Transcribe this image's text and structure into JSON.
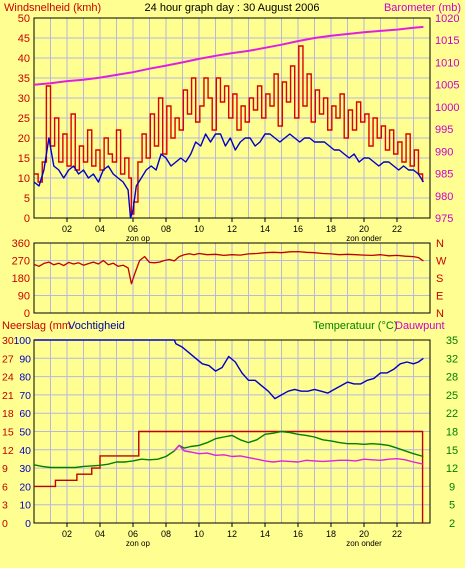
{
  "title": "24 hour graph day : 30 August 2006",
  "colors": {
    "background": "#fefe91",
    "plot_bg": "#fefe91",
    "grid": "#b7b7e0",
    "frame": "#000000",
    "wind": "#dd0000",
    "wind_avg": "#0000c8",
    "barometer": "#e020e0",
    "direction": "#c00000",
    "humidity": "#0000c8",
    "rain": "#c00000",
    "temperature": "#008000",
    "dewpoint": "#e020e0",
    "left_label": "#cc0000",
    "right_label_top": "#cc00cc",
    "right_label_mid": "#cc0000",
    "right_label_bottom": "#008000",
    "neerslag_label": "#cc0000",
    "vocht_label": "#0000aa",
    "dauw_label": "#cc00cc"
  },
  "x_ticks": [
    "02",
    "04",
    "06",
    "08",
    "10",
    "12",
    "14",
    "16",
    "18",
    "20",
    "22"
  ],
  "sun_labels": {
    "sunrise": "zon op",
    "sunset": "zon onder"
  },
  "chart_data": [
    {
      "type": "line",
      "name": "wind_barometer",
      "ylabel_left": "Windsnelheid (kmh)",
      "ylabel_right": "Barometer (mb)",
      "left_axis": {
        "min": 0,
        "max": 50,
        "ticks": [
          0,
          5,
          10,
          15,
          20,
          25,
          30,
          35,
          40,
          45,
          50
        ]
      },
      "right_axis": {
        "min": 975,
        "max": 1020,
        "ticks": [
          975,
          980,
          985,
          990,
          995,
          1000,
          1005,
          1010,
          1015,
          1020
        ]
      },
      "x_range_hours": [
        0,
        24
      ],
      "wind_avg": {
        "x": [
          0,
          0.3,
          0.6,
          0.9,
          1.2,
          1.5,
          1.8,
          2.1,
          2.4,
          2.7,
          3.0,
          3.3,
          3.6,
          3.9,
          4.2,
          4.5,
          4.8,
          5.1,
          5.4,
          5.7,
          5.85,
          6.0,
          6.2,
          6.5,
          6.8,
          7.1,
          7.4,
          7.7,
          8.0,
          8.3,
          8.6,
          8.9,
          9.2,
          9.5,
          9.8,
          10.1,
          10.4,
          10.7,
          11.0,
          11.3,
          11.6,
          11.9,
          12.2,
          12.5,
          12.8,
          13.1,
          13.4,
          13.7,
          14.0,
          14.3,
          14.6,
          14.9,
          15.2,
          15.5,
          15.8,
          16.1,
          16.4,
          16.7,
          17.0,
          17.3,
          17.6,
          17.9,
          18.2,
          18.5,
          18.8,
          19.1,
          19.4,
          19.7,
          20.0,
          20.3,
          20.6,
          20.9,
          21.2,
          21.5,
          21.8,
          22.1,
          22.4,
          22.7,
          23.0,
          23.3,
          23.6
        ],
        "values": [
          9,
          8,
          12,
          20,
          13,
          12,
          10,
          12,
          13,
          11,
          12,
          10,
          11,
          9,
          12,
          13,
          11,
          10,
          9,
          7,
          0,
          2,
          8,
          10,
          12,
          13,
          12,
          16,
          15,
          13,
          14,
          15,
          14,
          16,
          19,
          18,
          21,
          19,
          21,
          21,
          18,
          20,
          17,
          19,
          20,
          20,
          18,
          19,
          21,
          21,
          20,
          19,
          20,
          21,
          20,
          19,
          20,
          20,
          19,
          19,
          19,
          18,
          17,
          17,
          16,
          15,
          16,
          14,
          15,
          15,
          14,
          13,
          14,
          14,
          13,
          12,
          13,
          12,
          12,
          11,
          9
        ]
      },
      "wind_gust": {
        "x": [
          0,
          0.25,
          0.5,
          0.75,
          1.0,
          1.25,
          1.5,
          1.75,
          2.0,
          2.25,
          2.5,
          2.75,
          3.0,
          3.25,
          3.5,
          3.75,
          4.0,
          4.25,
          4.5,
          4.75,
          5.0,
          5.25,
          5.5,
          5.75,
          5.9,
          6.05,
          6.3,
          6.55,
          6.8,
          7.05,
          7.3,
          7.55,
          7.8,
          8.05,
          8.3,
          8.55,
          8.8,
          9.05,
          9.3,
          9.55,
          9.8,
          10.05,
          10.3,
          10.55,
          10.8,
          11.05,
          11.3,
          11.55,
          11.8,
          12.05,
          12.3,
          12.55,
          12.8,
          13.05,
          13.3,
          13.55,
          13.8,
          14.05,
          14.3,
          14.55,
          14.8,
          15.05,
          15.3,
          15.55,
          15.8,
          16.05,
          16.3,
          16.55,
          16.8,
          17.05,
          17.3,
          17.55,
          17.8,
          18.05,
          18.3,
          18.55,
          18.8,
          19.05,
          19.3,
          19.55,
          19.8,
          20.05,
          20.3,
          20.55,
          20.8,
          21.05,
          21.3,
          21.55,
          21.8,
          22.05,
          22.3,
          22.55,
          22.8,
          23.05,
          23.3,
          23.55
        ],
        "values": [
          11,
          9,
          14,
          33,
          18,
          25,
          14,
          21,
          13,
          26,
          12,
          18,
          14,
          22,
          13,
          17,
          12,
          20,
          16,
          14,
          22,
          11,
          15,
          10,
          1,
          4,
          14,
          21,
          15,
          26,
          18,
          30,
          16,
          28,
          20,
          25,
          22,
          32,
          26,
          35,
          24,
          28,
          35,
          30,
          22,
          35,
          29,
          33,
          25,
          31,
          22,
          28,
          24,
          30,
          27,
          33,
          25,
          31,
          28,
          36,
          23,
          34,
          29,
          38,
          25,
          43,
          28,
          36,
          24,
          32,
          26,
          30,
          22,
          28,
          25,
          31,
          20,
          27,
          22,
          29,
          24,
          26,
          18,
          25,
          20,
          23,
          17,
          22,
          16,
          19,
          14,
          21,
          13,
          17,
          11,
          9
        ]
      },
      "barometer": {
        "x": [
          0,
          1,
          2,
          3,
          4,
          5,
          6,
          7,
          8,
          9,
          10,
          11,
          12,
          13,
          14,
          15,
          16,
          17,
          18,
          19,
          20,
          21,
          22,
          23,
          23.6
        ],
        "values": [
          1005,
          1005.3,
          1005.8,
          1006.1,
          1006.6,
          1007.2,
          1007.8,
          1008.6,
          1009.3,
          1010,
          1010.8,
          1011.5,
          1012.1,
          1012.6,
          1013.3,
          1014,
          1014.8,
          1015.5,
          1016,
          1016.4,
          1016.8,
          1017.1,
          1017.4,
          1017.8,
          1018
        ]
      }
    },
    {
      "type": "line",
      "name": "wind_direction",
      "left_axis": {
        "min": 0,
        "max": 360,
        "ticks": [
          0,
          90,
          180,
          270,
          360
        ]
      },
      "right_labels": [
        "N",
        "W",
        "S",
        "E",
        "N"
      ],
      "x_range_hours": [
        0,
        24
      ],
      "direction": {
        "x": [
          0,
          0.3,
          0.6,
          0.9,
          1.2,
          1.5,
          1.8,
          2.1,
          2.4,
          2.7,
          3.0,
          3.3,
          3.6,
          3.9,
          4.2,
          4.5,
          4.8,
          5.1,
          5.4,
          5.7,
          5.9,
          6.1,
          6.4,
          6.7,
          7.0,
          7.3,
          7.6,
          7.9,
          8.2,
          8.5,
          8.8,
          9.1,
          9.4,
          9.7,
          10.0,
          10.5,
          11.0,
          11.5,
          12.0,
          12.5,
          13.0,
          13.5,
          14.0,
          14.5,
          15.0,
          15.5,
          16.0,
          16.5,
          17.0,
          17.5,
          18.0,
          18.5,
          19.0,
          19.5,
          20.0,
          20.5,
          21.0,
          21.5,
          22.0,
          22.5,
          23.0,
          23.3,
          23.6
        ],
        "values": [
          250,
          240,
          255,
          262,
          248,
          256,
          244,
          260,
          252,
          258,
          246,
          254,
          262,
          252,
          270,
          248,
          256,
          240,
          246,
          232,
          150,
          200,
          270,
          290,
          260,
          258,
          262,
          270,
          275,
          268,
          290,
          300,
          305,
          300,
          306,
          300,
          302,
          296,
          300,
          298,
          304,
          306,
          310,
          312,
          310,
          315,
          316,
          312,
          310,
          306,
          304,
          300,
          302,
          300,
          298,
          296,
          300,
          294,
          296,
          292,
          290,
          285,
          268
        ]
      }
    },
    {
      "type": "line",
      "name": "rain_humidity_temperature",
      "ylabel_left_1": "Neerslag (mm",
      "ylabel_left_2": "Vochtigheid",
      "ylabel_right_1": "Temperatuur (°C)",
      "ylabel_right_2": "Dauwpunt",
      "rain_axis": {
        "min": 0,
        "max": 30,
        "ticks": [
          0,
          3,
          6,
          9,
          12,
          15,
          18,
          21,
          24,
          27,
          30
        ]
      },
      "humidity_axis": {
        "min": 0,
        "max": 100,
        "ticks": [
          0,
          10,
          20,
          30,
          40,
          50,
          60,
          70,
          80,
          90,
          100
        ]
      },
      "temp_axis": {
        "min": 2,
        "max": 35,
        "ticks": [
          2,
          5,
          9,
          12,
          15,
          18,
          22,
          25,
          28,
          32,
          35
        ]
      },
      "x_range_hours": [
        0,
        24
      ],
      "rain": {
        "x": [
          0,
          0.3,
          1.3,
          1.6,
          2.6,
          3.5,
          4.0,
          4.1,
          6.3,
          6.35,
          8.6,
          23.5,
          23.55
        ],
        "values": [
          6,
          6,
          7,
          7,
          8,
          9,
          11,
          11,
          11,
          15,
          15,
          15,
          0
        ]
      },
      "humidity": {
        "x": [
          0,
          2,
          4,
          6,
          7.5,
          8.5,
          8.6,
          9.0,
          9.4,
          9.8,
          10.2,
          10.6,
          11.0,
          11.4,
          11.8,
          12.2,
          12.6,
          13.0,
          13.4,
          13.8,
          14.2,
          14.6,
          15.0,
          15.4,
          15.8,
          16.2,
          16.6,
          17.0,
          17.4,
          17.8,
          18.2,
          18.6,
          19.0,
          19.4,
          19.8,
          20.2,
          20.6,
          21.0,
          21.4,
          21.8,
          22.2,
          22.6,
          23.0,
          23.3,
          23.6
        ],
        "values": [
          100,
          100,
          100,
          100,
          100,
          100,
          98,
          96,
          93,
          90,
          87,
          86,
          83,
          85,
          91,
          88,
          82,
          78,
          78,
          75,
          72,
          68,
          70,
          72,
          73,
          72,
          72,
          73,
          72,
          71,
          73,
          75,
          77,
          76,
          76,
          78,
          79,
          82,
          82,
          84,
          87,
          88,
          87,
          88,
          90
        ]
      },
      "temperature": {
        "x": [
          0,
          0.5,
          1.0,
          1.5,
          2.0,
          2.5,
          3.0,
          3.5,
          4.0,
          4.5,
          5.0,
          5.5,
          6.0,
          6.5,
          7.0,
          7.5,
          8.0,
          8.5,
          8.8,
          9.1,
          9.5,
          10.0,
          10.5,
          11.0,
          11.5,
          12.0,
          12.5,
          13.0,
          13.5,
          14.0,
          14.5,
          15.0,
          15.5,
          16.0,
          16.5,
          17.0,
          17.5,
          18.0,
          18.5,
          19.0,
          19.5,
          20.0,
          20.5,
          21.0,
          21.5,
          22.0,
          22.5,
          23.0,
          23.6
        ],
        "values": [
          12.5,
          12.2,
          12,
          12,
          12,
          12,
          12.2,
          12.3,
          12.4,
          12.6,
          13,
          13,
          13.2,
          13.5,
          13.4,
          13.5,
          14,
          15,
          16,
          15.5,
          15.8,
          16,
          16.5,
          17.2,
          17.5,
          17.8,
          17,
          16.5,
          17,
          18,
          18.2,
          18.5,
          18.3,
          18,
          17.8,
          17.5,
          17,
          16.8,
          16.5,
          16.3,
          16.3,
          16.2,
          16.3,
          16.2,
          16,
          15.5,
          15,
          14.5,
          14
        ]
      },
      "dewpoint": {
        "x": [
          8.5,
          8.8,
          9.1,
          9.5,
          10.0,
          10.5,
          11.0,
          11.5,
          12.0,
          12.5,
          13.0,
          13.5,
          14.0,
          14.5,
          15.0,
          15.5,
          16.0,
          16.5,
          17.0,
          17.5,
          18.0,
          18.5,
          19.0,
          19.5,
          20.0,
          20.5,
          21.0,
          21.5,
          22.0,
          22.5,
          23.0,
          23.6
        ],
        "values": [
          15,
          16,
          15,
          14.8,
          14.5,
          14.6,
          14.2,
          14.3,
          14,
          14.1,
          13.8,
          13.5,
          13.2,
          13,
          13.2,
          13.1,
          13,
          13.3,
          13.2,
          13.1,
          13.2,
          13.3,
          13.3,
          13.2,
          13.5,
          13.4,
          13.3,
          13.5,
          13.6,
          13.4,
          13,
          12.6
        ]
      }
    }
  ]
}
